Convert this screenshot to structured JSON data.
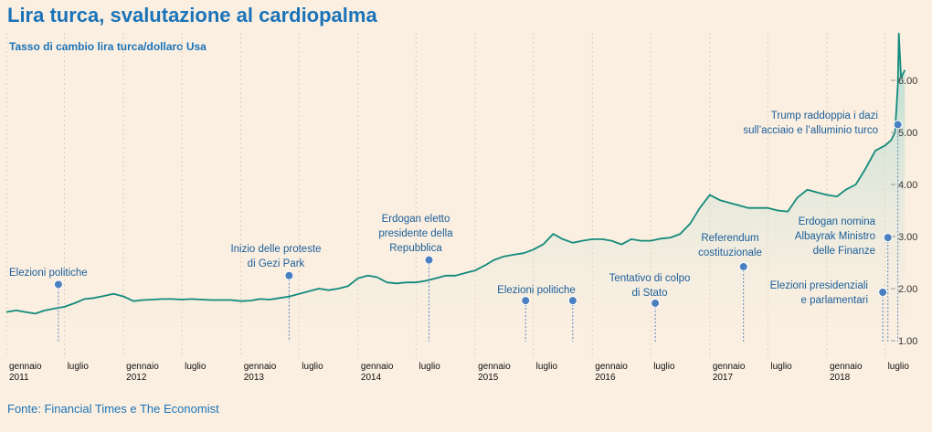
{
  "title": "Lira turca, svalutazione al cardiopalma",
  "subtitle": "Tasso di cambio lira turca/dollaro Usa",
  "source": "Fonte: Financial Times e The Economist",
  "colors": {
    "line": "#128a7c",
    "area_top": "#a9d9cf",
    "background": "#fbefe1",
    "marker": "#4a7fc1",
    "annotation_text": "#1a5e9a",
    "title": "#1a73b8"
  },
  "chart_data": {
    "type": "area",
    "title": "Lira turca, svalutazione al cardiopalma",
    "subtitle": "Tasso di cambio lira turca/dollaro Usa",
    "xlabel": "",
    "ylabel": "",
    "xlim": [
      "2011-01-01",
      "2018-09-01"
    ],
    "ylim": [
      1.0,
      6.9
    ],
    "y_ticks": [
      "1.00",
      "2.00",
      "3.00",
      "4.00",
      "5.00",
      "6.00"
    ],
    "y_axis_side": "right",
    "grid": "vertical dashed",
    "x_ticks": [
      {
        "date": "2011-01-01",
        "label": [
          "gennaio",
          "2011"
        ]
      },
      {
        "date": "2011-07-01",
        "label": [
          "luglio"
        ]
      },
      {
        "date": "2012-01-01",
        "label": [
          "gennaio",
          "2012"
        ]
      },
      {
        "date": "2012-07-01",
        "label": [
          "luglio"
        ]
      },
      {
        "date": "2013-01-01",
        "label": [
          "gennaio",
          "2013"
        ]
      },
      {
        "date": "2013-07-01",
        "label": [
          "luglio"
        ]
      },
      {
        "date": "2014-01-01",
        "label": [
          "gennaio",
          "2014"
        ]
      },
      {
        "date": "2014-07-01",
        "label": [
          "luglio"
        ]
      },
      {
        "date": "2015-01-01",
        "label": [
          "gennaio",
          "2015"
        ]
      },
      {
        "date": "2015-07-01",
        "label": [
          "luglio"
        ]
      },
      {
        "date": "2016-01-01",
        "label": [
          "gennaio",
          "2016"
        ]
      },
      {
        "date": "2016-07-01",
        "label": [
          "luglio"
        ]
      },
      {
        "date": "2017-01-01",
        "label": [
          "gennaio",
          "2017"
        ]
      },
      {
        "date": "2017-07-01",
        "label": [
          "luglio"
        ]
      },
      {
        "date": "2018-01-01",
        "label": [
          "gennaio",
          "2018"
        ]
      },
      {
        "date": "2018-07-01",
        "label": [
          "luglio"
        ]
      }
    ],
    "series": [
      {
        "x": [
          "2011-01-01",
          "2011-02-01",
          "2011-03-01",
          "2011-04-01",
          "2011-05-01",
          "2011-06-01",
          "2011-07-01",
          "2011-08-01",
          "2011-09-01",
          "2011-10-01",
          "2011-11-01",
          "2011-12-01",
          "2012-01-01",
          "2012-02-01",
          "2012-03-01",
          "2012-04-01",
          "2012-05-01",
          "2012-06-01",
          "2012-07-01",
          "2012-08-01",
          "2012-09-01",
          "2012-10-01",
          "2012-11-01",
          "2012-12-01",
          "2013-01-01",
          "2013-02-01",
          "2013-03-01",
          "2013-04-01",
          "2013-05-01",
          "2013-06-01",
          "2013-07-01",
          "2013-08-01",
          "2013-09-01",
          "2013-10-01",
          "2013-11-01",
          "2013-12-01",
          "2014-01-01",
          "2014-02-01",
          "2014-03-01",
          "2014-04-01",
          "2014-05-01",
          "2014-06-01",
          "2014-07-01",
          "2014-08-01",
          "2014-09-01",
          "2014-10-01",
          "2014-11-01",
          "2014-12-01",
          "2015-01-01",
          "2015-02-01",
          "2015-03-01",
          "2015-04-01",
          "2015-05-01",
          "2015-06-01",
          "2015-07-01",
          "2015-08-01",
          "2015-09-01",
          "2015-10-01",
          "2015-11-01",
          "2015-12-01",
          "2016-01-01",
          "2016-02-01",
          "2016-03-01",
          "2016-04-01",
          "2016-05-01",
          "2016-06-01",
          "2016-07-01",
          "2016-08-01",
          "2016-09-01",
          "2016-10-01",
          "2016-11-01",
          "2016-12-01",
          "2017-01-01",
          "2017-02-01",
          "2017-03-01",
          "2017-04-01",
          "2017-05-01",
          "2017-06-01",
          "2017-07-01",
          "2017-08-01",
          "2017-09-01",
          "2017-10-01",
          "2017-11-01",
          "2017-12-01",
          "2018-01-01",
          "2018-02-01",
          "2018-03-01",
          "2018-04-01",
          "2018-05-01",
          "2018-06-01",
          "2018-07-01",
          "2018-07-20",
          "2018-08-01",
          "2018-08-10",
          "2018-08-13",
          "2018-08-20",
          "2018-09-01"
        ],
        "values": [
          1.55,
          1.58,
          1.55,
          1.52,
          1.58,
          1.62,
          1.65,
          1.72,
          1.8,
          1.82,
          1.86,
          1.9,
          1.85,
          1.76,
          1.78,
          1.79,
          1.8,
          1.8,
          1.79,
          1.8,
          1.79,
          1.78,
          1.78,
          1.78,
          1.76,
          1.77,
          1.8,
          1.79,
          1.82,
          1.85,
          1.9,
          1.95,
          2.0,
          1.97,
          2.0,
          2.05,
          2.2,
          2.25,
          2.22,
          2.12,
          2.1,
          2.12,
          2.12,
          2.15,
          2.2,
          2.25,
          2.25,
          2.3,
          2.35,
          2.45,
          2.55,
          2.62,
          2.65,
          2.68,
          2.75,
          2.85,
          3.05,
          2.95,
          2.88,
          2.92,
          2.95,
          2.95,
          2.92,
          2.85,
          2.95,
          2.92,
          2.92,
          2.96,
          2.98,
          3.05,
          3.25,
          3.55,
          3.8,
          3.7,
          3.65,
          3.6,
          3.55,
          3.55,
          3.55,
          3.5,
          3.48,
          3.75,
          3.9,
          3.85,
          3.8,
          3.77,
          3.9,
          4.0,
          4.3,
          4.65,
          4.75,
          4.85,
          5.0,
          5.9,
          6.9,
          6.05,
          6.2
        ]
      }
    ],
    "annotations": [
      {
        "text": [
          "Elezioni politiche"
        ],
        "date": "2011-06-12",
        "value": 2.08
      },
      {
        "text": [
          "Inizio delle proteste",
          "di Gezi Park"
        ],
        "date": "2013-05-31",
        "value": 2.25
      },
      {
        "text": [
          "Erdogan eletto",
          "presidente della",
          "Repubblica"
        ],
        "date": "2014-08-10",
        "value": 2.55
      },
      {
        "text": [
          "Elezioni politiche"
        ],
        "date": "2015-06-07",
        "value": 1.77
      },
      {
        "text": [],
        "date": "2015-11-01",
        "value": 1.77
      },
      {
        "text": [
          "Tentativo di colpo",
          "di Stato"
        ],
        "date": "2016-07-15",
        "value": 1.72
      },
      {
        "text": [
          "Referendum",
          "costituzionale"
        ],
        "date": "2017-04-16",
        "value": 2.42
      },
      {
        "text": [
          "Elezioni presidenziali",
          "e parlamentari"
        ],
        "date": "2018-06-24",
        "value": 1.93
      },
      {
        "text": [
          "Erdogan nomina",
          "Albayrak Ministro",
          "delle Finanze"
        ],
        "date": "2018-07-10",
        "value": 2.98
      },
      {
        "text": [
          "Trump raddoppia i dazi",
          "sull’acciaio e l’alluminio turco"
        ],
        "date": "2018-08-10",
        "value": 5.15
      }
    ]
  }
}
